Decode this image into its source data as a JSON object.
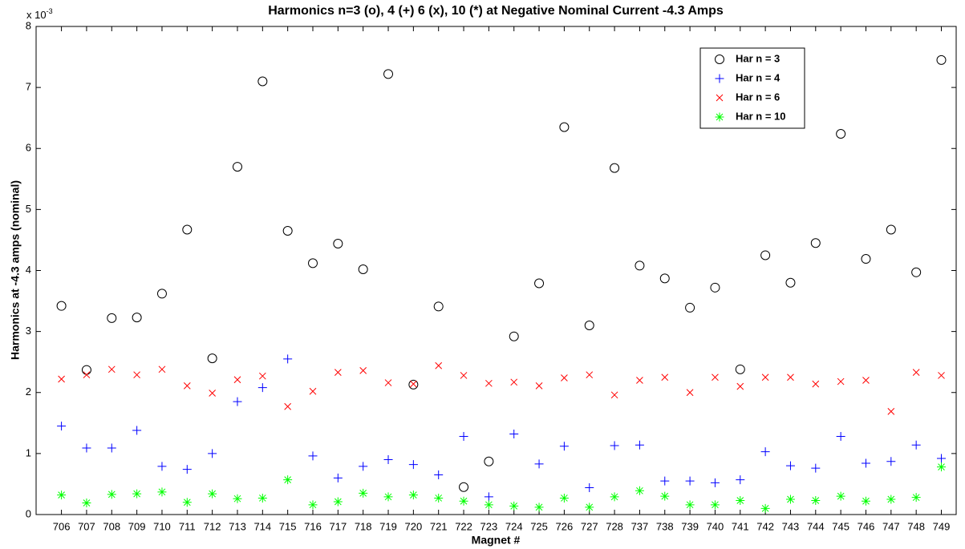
{
  "chart_data": {
    "type": "scatter",
    "title": "Harmonics n=3 (o), 4 (+) 6 (x), 10 (*) at Negative Nominal Current -4.3 Amps",
    "x_label": "Magnet #",
    "y_label": "Harmonics at -4.3 amps (nominal)",
    "y_multiplier": {
      "base": "x 10",
      "exponent": "-3"
    },
    "categories": [
      "706",
      "707",
      "708",
      "709",
      "710",
      "711",
      "712",
      "713",
      "714",
      "715",
      "716",
      "717",
      "718",
      "719",
      "720",
      "721",
      "722",
      "723",
      "724",
      "725",
      "726",
      "727",
      "728",
      "737",
      "738",
      "739",
      "740",
      "741",
      "742",
      "743",
      "744",
      "745",
      "746",
      "747",
      "748",
      "749"
    ],
    "ylim": [
      0,
      8
    ],
    "yticks": [
      0,
      1,
      2,
      3,
      4,
      5,
      6,
      7,
      8
    ],
    "legend_position": "upper right",
    "series": [
      {
        "name": "Har n = 3",
        "color": "#000000",
        "marker": "o",
        "values": [
          3.42,
          2.37,
          3.22,
          3.23,
          3.62,
          4.67,
          2.56,
          5.7,
          7.1,
          4.65,
          4.12,
          4.44,
          4.02,
          7.22,
          2.13,
          3.41,
          0.45,
          0.87,
          2.92,
          3.79,
          6.35,
          3.1,
          5.68,
          4.08,
          3.87,
          3.39,
          3.72,
          2.38,
          4.25,
          3.8,
          4.45,
          6.24,
          4.19,
          4.67,
          3.97,
          7.45
        ]
      },
      {
        "name": "Har n = 4",
        "color": "#0000ff",
        "marker": "+",
        "values": [
          1.45,
          1.09,
          1.09,
          1.38,
          0.79,
          0.74,
          1.0,
          1.85,
          2.08,
          2.55,
          0.96,
          0.6,
          0.79,
          0.9,
          0.82,
          0.65,
          1.28,
          0.29,
          1.32,
          0.83,
          1.12,
          0.44,
          1.13,
          1.14,
          0.55,
          0.55,
          0.52,
          0.57,
          1.03,
          0.8,
          0.76,
          1.28,
          0.84,
          0.87,
          1.14,
          0.92
        ]
      },
      {
        "name": "Har n = 6",
        "color": "#ff0000",
        "marker": "x",
        "values": [
          2.22,
          2.29,
          2.38,
          2.29,
          2.38,
          2.11,
          1.99,
          2.21,
          2.27,
          1.77,
          2.02,
          2.33,
          2.36,
          2.16,
          2.14,
          2.44,
          2.28,
          2.15,
          2.17,
          2.11,
          2.24,
          2.29,
          1.96,
          2.2,
          2.25,
          2.0,
          2.25,
          2.1,
          2.25,
          2.25,
          2.14,
          2.18,
          2.2,
          1.69,
          2.33,
          2.28
        ]
      },
      {
        "name": "Har n = 10",
        "color": "#00ff00",
        "marker": "*",
        "values": [
          0.32,
          0.19,
          0.33,
          0.34,
          0.37,
          0.2,
          0.34,
          0.26,
          0.27,
          0.57,
          0.16,
          0.21,
          0.35,
          0.29,
          0.32,
          0.27,
          0.22,
          0.16,
          0.14,
          0.12,
          0.27,
          0.12,
          0.29,
          0.39,
          0.3,
          0.16,
          0.16,
          0.23,
          0.1,
          0.25,
          0.23,
          0.3,
          0.22,
          0.25,
          0.28,
          0.78
        ]
      }
    ]
  }
}
